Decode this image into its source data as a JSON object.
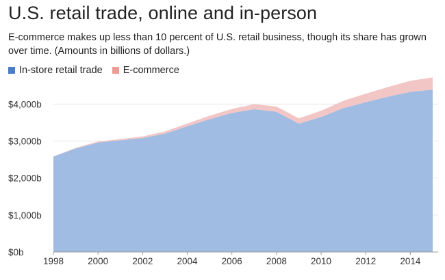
{
  "chart_data": {
    "type": "area",
    "stacked": true,
    "title": "U.S. retail trade, online and in-person",
    "subtitle": "E-commerce makes up less than 10 percent of U.S. retail business, though its share has grown over time. (Amounts in billions of dollars.)",
    "x": [
      1998,
      1999,
      2000,
      2001,
      2002,
      2003,
      2004,
      2005,
      2006,
      2007,
      2008,
      2009,
      2010,
      2011,
      2012,
      2013,
      2014,
      2015
    ],
    "xlim": [
      1998,
      2015
    ],
    "x_ticks": [
      {
        "value": 1998,
        "label": "1998"
      },
      {
        "value": 2000,
        "label": "2000"
      },
      {
        "value": 2002,
        "label": "2002"
      },
      {
        "value": 2004,
        "label": "2004"
      },
      {
        "value": 2006,
        "label": "2006"
      },
      {
        "value": 2008,
        "label": "2008"
      },
      {
        "value": 2010,
        "label": "2010"
      },
      {
        "value": 2012,
        "label": "2012"
      },
      {
        "value": 2014,
        "label": "2014"
      }
    ],
    "ylim": [
      0,
      4800
    ],
    "y_ticks": [
      {
        "value": 0,
        "label": "$0b"
      },
      {
        "value": 1000,
        "label": "$1,000b"
      },
      {
        "value": 2000,
        "label": "$2,000b"
      },
      {
        "value": 3000,
        "label": "$3,000b"
      },
      {
        "value": 4000,
        "label": "$4,000b"
      }
    ],
    "grid": true,
    "legend_position": "top-left",
    "series": [
      {
        "name": "In-store retail trade",
        "color": "#a0bce3",
        "values": [
          2580,
          2800,
          2960,
          3020,
          3080,
          3200,
          3400,
          3590,
          3760,
          3860,
          3790,
          3470,
          3650,
          3890,
          4050,
          4200,
          4330,
          4390
        ]
      },
      {
        "name": "E-commerce",
        "color": "#f3c6c6",
        "values": [
          5,
          15,
          28,
          34,
          45,
          58,
          72,
          92,
          108,
          138,
          142,
          145,
          170,
          200,
          230,
          260,
          300,
          330
        ]
      }
    ],
    "legend_swatches": [
      "#4a7cc7",
      "#ee9a95"
    ]
  }
}
